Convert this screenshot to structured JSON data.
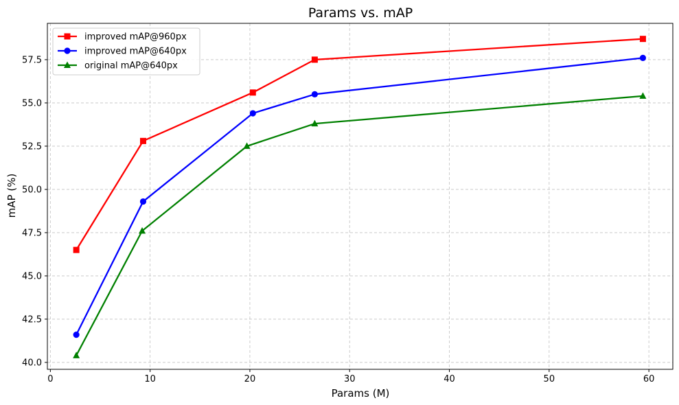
{
  "chart_data": {
    "type": "line",
    "title": "Params vs. mAP",
    "xlabel": "Params (M)",
    "ylabel": "mAP (%)",
    "xlim": [
      -0.3,
      62.4
    ],
    "ylim": [
      39.6,
      59.6
    ],
    "xticks": [
      0,
      10,
      20,
      30,
      40,
      50,
      60
    ],
    "yticks": [
      40.0,
      42.5,
      45.0,
      47.5,
      50.0,
      52.5,
      55.0,
      57.5
    ],
    "xtick_labels": [
      "0",
      "10",
      "20",
      "30",
      "40",
      "50",
      "60"
    ],
    "ytick_labels": [
      "40.0",
      "42.5",
      "45.0",
      "47.5",
      "50.0",
      "52.5",
      "55.0",
      "57.5"
    ],
    "grid": true,
    "legend_position": "top-left",
    "series": [
      {
        "name": "improved mAP@960px",
        "color": "#ff0000",
        "marker": "square",
        "x": [
          2.6,
          9.3,
          20.3,
          26.5,
          59.4
        ],
        "y": [
          46.5,
          52.8,
          55.6,
          57.5,
          58.7
        ]
      },
      {
        "name": "improved mAP@640px",
        "color": "#0000ff",
        "marker": "circle",
        "x": [
          2.6,
          9.3,
          20.3,
          26.5,
          59.4
        ],
        "y": [
          41.6,
          49.3,
          54.4,
          55.5,
          57.6
        ]
      },
      {
        "name": "original mAP@640px",
        "color": "#008000",
        "marker": "triangle",
        "x": [
          2.6,
          9.2,
          19.7,
          26.5,
          59.4
        ],
        "y": [
          40.4,
          47.6,
          52.5,
          53.8,
          55.4
        ]
      }
    ]
  }
}
